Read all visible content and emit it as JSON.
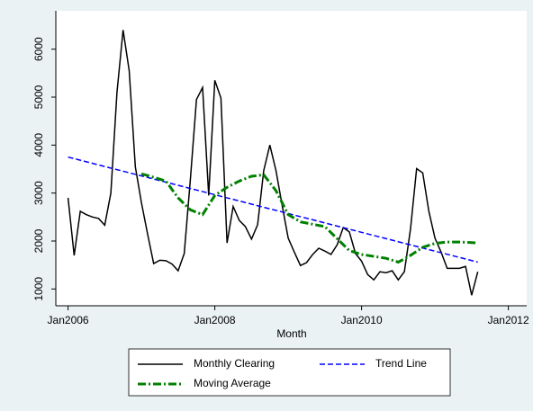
{
  "chart_data": {
    "type": "line",
    "x_label": "Month",
    "xlim": [
      "2005-11",
      "2012-04"
    ],
    "xticks": [
      {
        "value": "2006-01",
        "label": "Jan2006"
      },
      {
        "value": "2008-01",
        "label": "Jan2008"
      },
      {
        "value": "2010-01",
        "label": "Jan2010"
      },
      {
        "value": "2012-01",
        "label": "Jan2012"
      }
    ],
    "ylim": [
      650,
      6800
    ],
    "yticks": [
      1000,
      2000,
      3000,
      4000,
      5000,
      6000
    ],
    "grid": false,
    "legend": "bottom",
    "series": [
      {
        "name": "Monthly Clearing",
        "color": "#000000",
        "style": "solid",
        "x": [
          "2006-01",
          "2006-02",
          "2006-03",
          "2006-04",
          "2006-05",
          "2006-06",
          "2006-07",
          "2006-08",
          "2006-09",
          "2006-10",
          "2006-11",
          "2006-12",
          "2007-01",
          "2007-02",
          "2007-03",
          "2007-04",
          "2007-05",
          "2007-06",
          "2007-07",
          "2007-08",
          "2007-09",
          "2007-10",
          "2007-11",
          "2007-12",
          "2008-01",
          "2008-02",
          "2008-03",
          "2008-04",
          "2008-05",
          "2008-06",
          "2008-07",
          "2008-08",
          "2008-09",
          "2008-10",
          "2008-11",
          "2008-12",
          "2009-01",
          "2009-02",
          "2009-03",
          "2009-04",
          "2009-05",
          "2009-06",
          "2009-07",
          "2009-08",
          "2009-09",
          "2009-10",
          "2009-11",
          "2009-12",
          "2010-01",
          "2010-02",
          "2010-03",
          "2010-04",
          "2010-05",
          "2010-06",
          "2010-07",
          "2010-08",
          "2010-09",
          "2010-10",
          "2010-11",
          "2010-12",
          "2011-01",
          "2011-02",
          "2011-03",
          "2011-04",
          "2011-05",
          "2011-06",
          "2011-07",
          "2011-08"
        ],
        "values": [
          2900,
          1700,
          2620,
          2550,
          2500,
          2470,
          2330,
          3000,
          5100,
          6400,
          5550,
          3550,
          2800,
          2150,
          1530,
          1600,
          1590,
          1520,
          1380,
          1740,
          3280,
          4950,
          5200,
          2950,
          5350,
          4980,
          1960,
          2720,
          2430,
          2300,
          2040,
          2340,
          3470,
          4000,
          3470,
          2750,
          2060,
          1770,
          1490,
          1550,
          1720,
          1850,
          1790,
          1720,
          1920,
          2280,
          2190,
          1740,
          1580,
          1300,
          1190,
          1360,
          1340,
          1380,
          1190,
          1360,
          2250,
          3510,
          3420,
          2620,
          2060,
          1770,
          1430,
          1430,
          1430,
          1470,
          870,
          1360
        ]
      },
      {
        "name": "Trend Line",
        "color": "#0000ff",
        "style": "dash",
        "x": [
          "2006-01",
          "2011-08"
        ],
        "values": [
          3750,
          1560
        ]
      },
      {
        "name": "Moving Average",
        "color": "#008000",
        "style": "dashdot",
        "x": [
          "2007-01",
          "2007-03",
          "2007-05",
          "2007-07",
          "2007-09",
          "2007-11",
          "2008-01",
          "2008-03",
          "2008-05",
          "2008-07",
          "2008-09",
          "2008-11",
          "2009-01",
          "2009-03",
          "2009-05",
          "2009-07",
          "2009-09",
          "2009-11",
          "2010-01",
          "2010-03",
          "2010-05",
          "2010-07",
          "2010-09",
          "2010-11",
          "2011-01",
          "2011-03",
          "2011-05",
          "2011-08"
        ],
        "values": [
          3400,
          3330,
          3250,
          2900,
          2650,
          2550,
          2950,
          3120,
          3250,
          3350,
          3380,
          3050,
          2550,
          2400,
          2350,
          2300,
          2050,
          1800,
          1720,
          1680,
          1640,
          1560,
          1700,
          1870,
          1950,
          1980,
          1980,
          1960
        ]
      }
    ]
  }
}
